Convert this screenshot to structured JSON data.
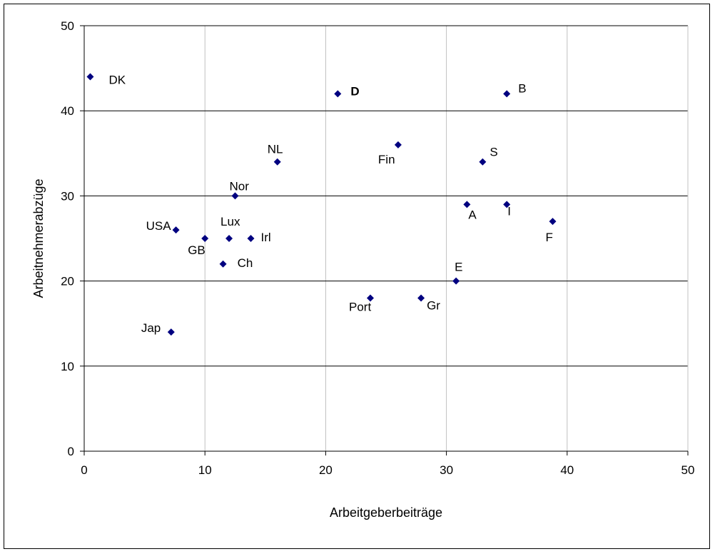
{
  "chart_data": {
    "type": "scatter",
    "title": "",
    "xlabel": "Arbeitgeberbeiträge",
    "ylabel": "Arbeitnehmerabzüge",
    "xlim": [
      0,
      50
    ],
    "ylim": [
      0,
      50
    ],
    "x_ticks": [
      "0",
      "10",
      "20",
      "30",
      "40",
      "50"
    ],
    "y_ticks": [
      "0",
      "10",
      "20",
      "30",
      "40",
      "50"
    ],
    "grid": "major gridlines on both axes",
    "legend": "none",
    "marker": "diamond",
    "marker_color": "#000080",
    "points": [
      {
        "label": "DK",
        "x": 0.5,
        "y": 44,
        "bold": false
      },
      {
        "label": "D",
        "x": 21,
        "y": 42,
        "bold": true
      },
      {
        "label": "B",
        "x": 35,
        "y": 42,
        "bold": false
      },
      {
        "label": "Fin",
        "x": 26,
        "y": 36,
        "bold": false
      },
      {
        "label": "NL",
        "x": 16,
        "y": 34,
        "bold": false
      },
      {
        "label": "S",
        "x": 33,
        "y": 34,
        "bold": false
      },
      {
        "label": "Nor",
        "x": 12.5,
        "y": 30,
        "bold": false
      },
      {
        "label": "A",
        "x": 31.7,
        "y": 29,
        "bold": false
      },
      {
        "label": "I",
        "x": 35,
        "y": 29,
        "bold": false
      },
      {
        "label": "F",
        "x": 38.8,
        "y": 27,
        "bold": false
      },
      {
        "label": "USA",
        "x": 7.6,
        "y": 26,
        "bold": false
      },
      {
        "label": "GB",
        "x": 10,
        "y": 25,
        "bold": false
      },
      {
        "label": "Lux",
        "x": 12,
        "y": 25,
        "bold": false
      },
      {
        "label": "Irl",
        "x": 13.8,
        "y": 25,
        "bold": false
      },
      {
        "label": "Ch",
        "x": 11.5,
        "y": 22,
        "bold": false
      },
      {
        "label": "E",
        "x": 30.8,
        "y": 20,
        "bold": false
      },
      {
        "label": "Port",
        "x": 23.7,
        "y": 18,
        "bold": false
      },
      {
        "label": "Gr",
        "x": 27.9,
        "y": 18,
        "bold": false
      },
      {
        "label": "Jap",
        "x": 7.2,
        "y": 14,
        "bold": false
      }
    ]
  }
}
